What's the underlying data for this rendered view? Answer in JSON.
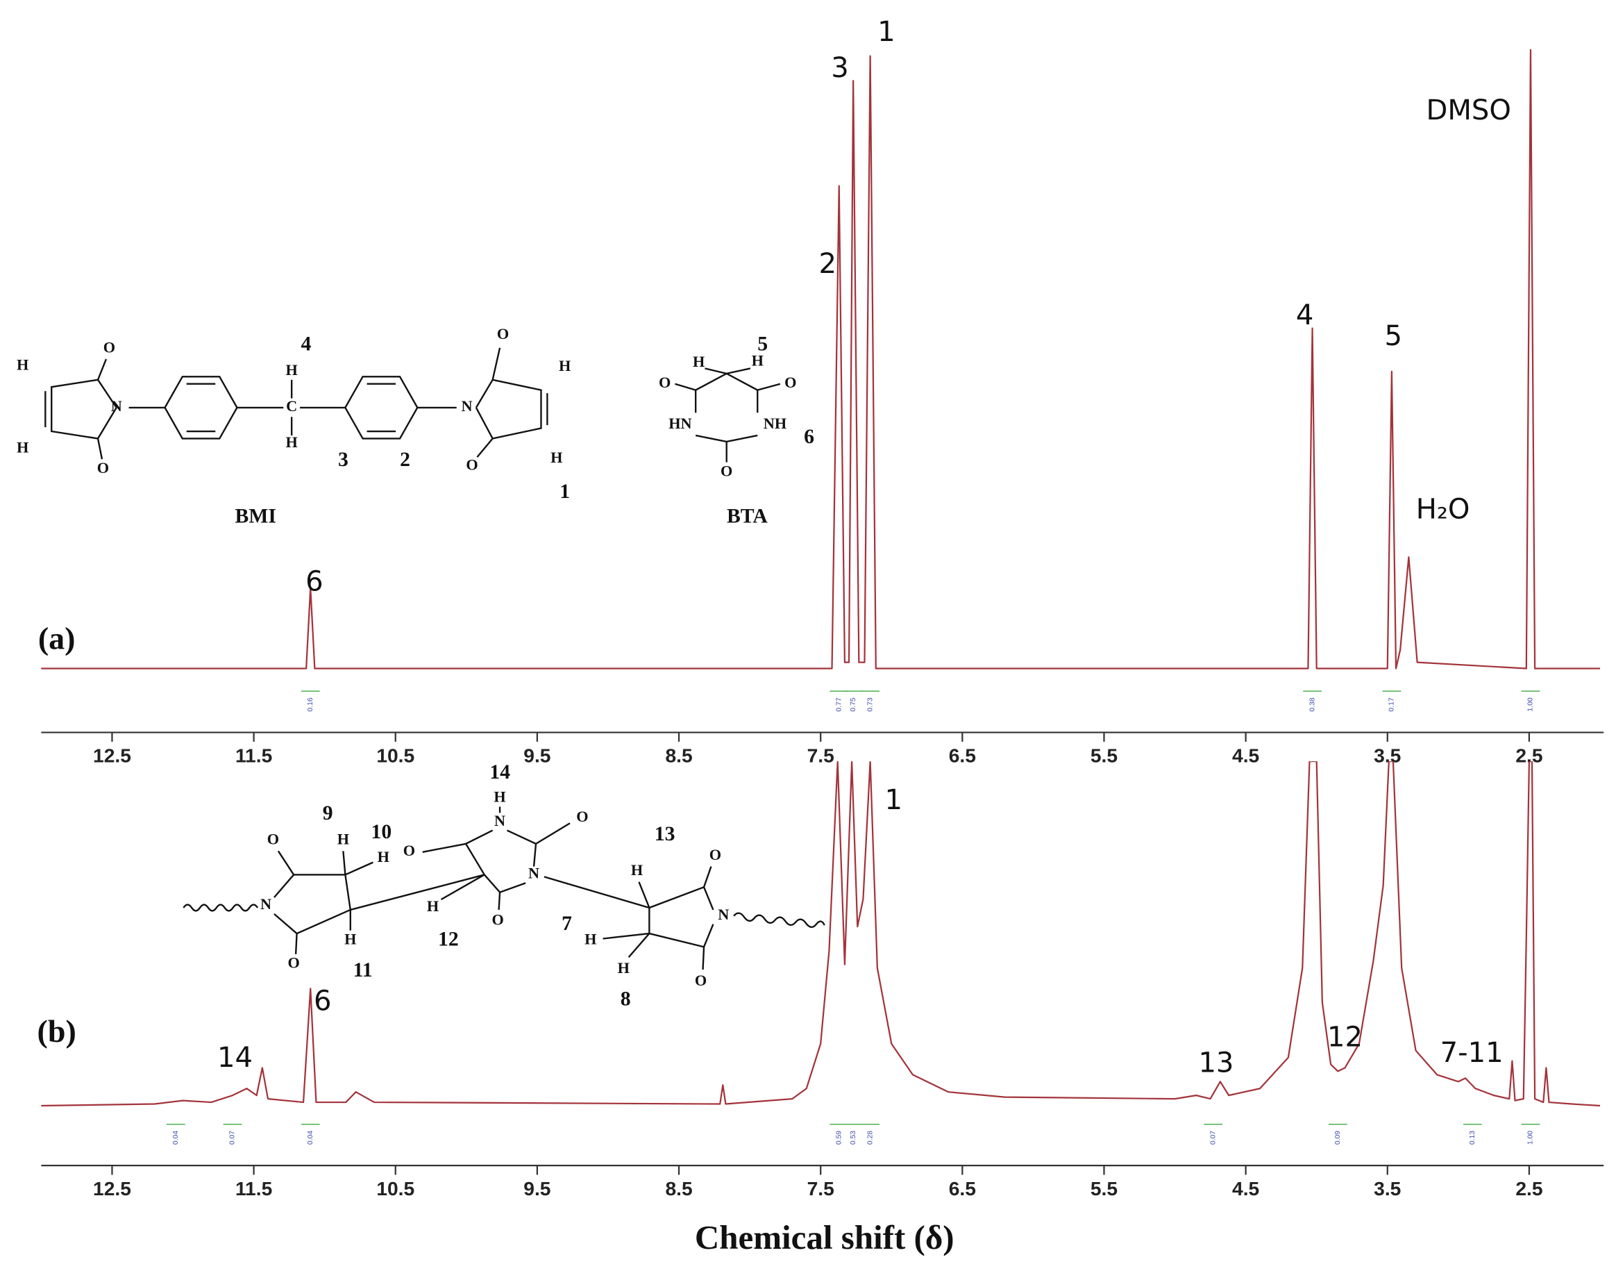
{
  "chart_data": [
    {
      "type": "line",
      "panel_label": "(a)",
      "color": "#a3333b",
      "x": [
        13,
        11.13,
        11.1,
        11.07,
        7.42,
        7.37,
        7.33,
        7.3,
        7.27,
        7.23,
        7.19,
        7.15,
        7.11,
        4.06,
        4.03,
        4.0,
        3.5,
        3.47,
        3.44,
        3.41,
        3.35,
        3.29,
        2.52,
        2.49,
        2.46,
        2
      ],
      "values": [
        0,
        0,
        13,
        0,
        0,
        78,
        1,
        1,
        95,
        1,
        1,
        99,
        0,
        0,
        55,
        0,
        0,
        48,
        0,
        3,
        18,
        1,
        0,
        100,
        0,
        0
      ],
      "xlim": [
        13,
        2
      ],
      "xticks": [
        12.5,
        11.5,
        10.5,
        9.5,
        8.5,
        7.5,
        6.5,
        5.5,
        4.5,
        3.5,
        2.5
      ],
      "ylim": [
        0,
        100
      ],
      "peak_labels": [
        "1",
        "3",
        "2",
        "DMSO",
        "4",
        "5",
        "H₂O",
        "6"
      ],
      "integrals": {
        "x": [
          11.1,
          7.37,
          7.27,
          7.15,
          4.03,
          3.47,
          2.49
        ],
        "labels": [
          "0.16",
          "0.77",
          "0.75",
          "0.73",
          "0.38",
          "0.17",
          "1.00"
        ]
      }
    },
    {
      "type": "line",
      "panel_label": "(b)",
      "color": "#a3333b",
      "x": [
        13,
        12.2,
        12,
        11.8,
        11.65,
        11.55,
        11.48,
        11.44,
        11.4,
        11.15,
        11.1,
        11.06,
        10.85,
        10.78,
        10.65,
        8.21,
        8.19,
        8.17,
        7.7,
        7.6,
        7.5,
        7.44,
        7.38,
        7.33,
        7.28,
        7.24,
        7.2,
        7.15,
        7.1,
        7,
        6.85,
        6.6,
        6.2,
        5,
        4.85,
        4.75,
        4.68,
        4.62,
        4.4,
        4.2,
        4.1,
        4.05,
        4,
        3.96,
        3.9,
        3.85,
        3.8,
        3.7,
        3.6,
        3.53,
        3.49,
        3.46,
        3.4,
        3.3,
        3.15,
        3,
        2.95,
        2.88,
        2.75,
        2.64,
        2.62,
        2.6,
        2.54,
        2.52,
        2.5,
        2.48,
        2.46,
        2.4,
        2.38,
        2.36,
        2.2,
        2
      ],
      "values": [
        0,
        0.5,
        1.5,
        1,
        3,
        5,
        3,
        11,
        2,
        1,
        34,
        1,
        1,
        4,
        1,
        0.5,
        6,
        0.5,
        2,
        5,
        18,
        45,
        100,
        41,
        100,
        52,
        60,
        100,
        40,
        18,
        9,
        4,
        2.5,
        2,
        3,
        2,
        7,
        3,
        5,
        14,
        40,
        100,
        100,
        30,
        12,
        10,
        11,
        18,
        42,
        64,
        100,
        100,
        40,
        16,
        9,
        7,
        8,
        5,
        3,
        2,
        13,
        1.5,
        2,
        49,
        100,
        100,
        2,
        1,
        11,
        1,
        0.5,
        0
      ],
      "xlim": [
        13,
        2
      ],
      "xticks": [
        12.5,
        11.5,
        10.5,
        9.5,
        8.5,
        7.5,
        6.5,
        5.5,
        4.5,
        3.5,
        2.5
      ],
      "ylim": [
        0,
        100
      ],
      "peak_labels": [
        "1",
        "6",
        "14",
        "13",
        "12",
        "7-11"
      ],
      "integrals": {
        "x": [
          12.05,
          11.65,
          11.1,
          7.37,
          7.27,
          7.15,
          4.73,
          3.85,
          2.9,
          2.49
        ],
        "labels": [
          "0.04",
          "0.07",
          "0.04",
          "0.59",
          "0.53",
          "0.28",
          "0.07",
          "0.09",
          "0.13",
          "1.00"
        ]
      },
      "xlabel": "Chemical shift (δ)"
    }
  ],
  "structures": {
    "bmi": {
      "name": "BMI",
      "atoms": [
        "O",
        "O",
        "O",
        "O",
        "H",
        "H",
        "H",
        "H",
        "H",
        "H",
        "N",
        "N",
        "C"
      ],
      "numbers": [
        "4",
        "3",
        "2",
        "1"
      ]
    },
    "bta": {
      "name": "BTA",
      "atoms": [
        "H",
        "H",
        "O",
        "O",
        "O",
        "HN",
        "NH"
      ],
      "numbers": [
        "5",
        "6"
      ]
    },
    "product": {
      "atoms": [
        "O",
        "O",
        "N",
        "H",
        "H",
        "O",
        "H",
        "H",
        "N",
        "O",
        "N",
        "O",
        "H",
        "O",
        "N",
        "O",
        "H",
        "H",
        "H"
      ],
      "numbers": [
        "9",
        "10",
        "11",
        "12",
        "14",
        "13",
        "7",
        "8"
      ]
    }
  }
}
